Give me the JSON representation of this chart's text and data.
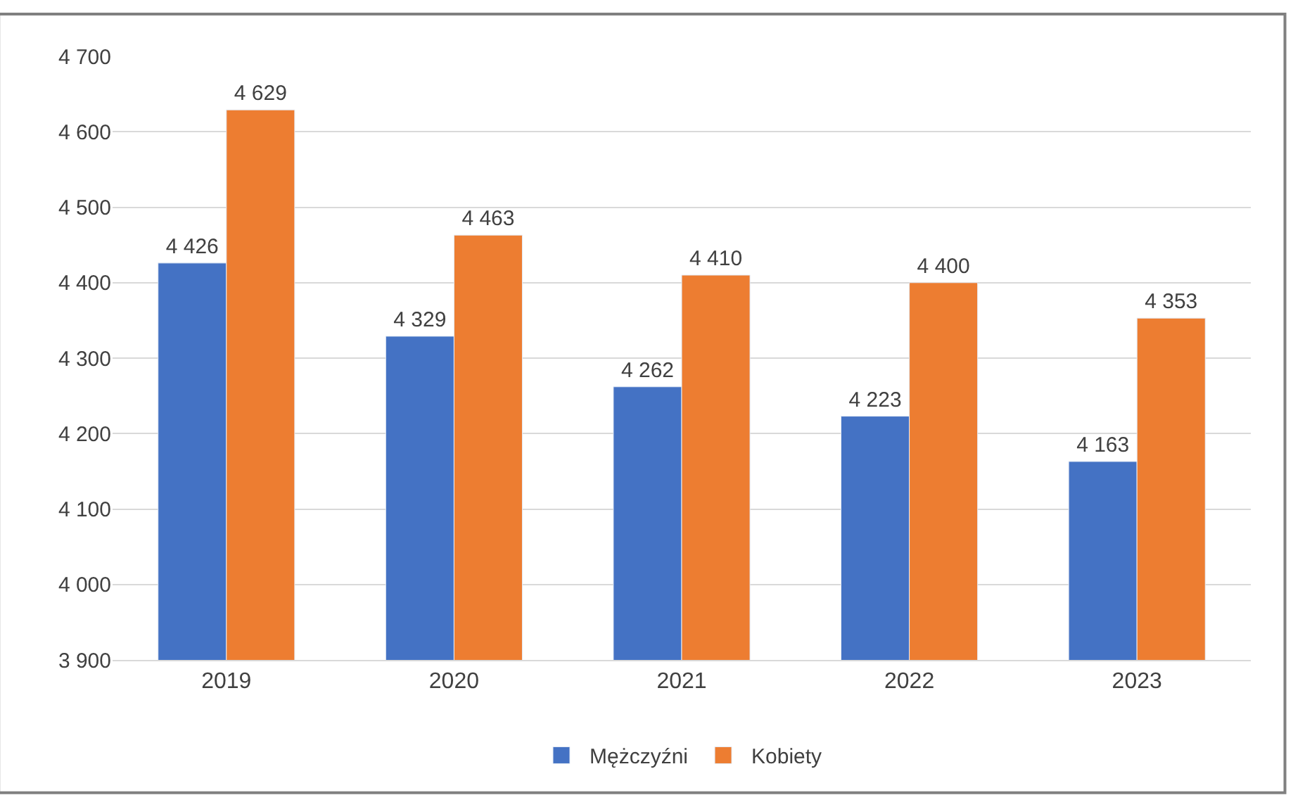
{
  "chart_data": {
    "type": "bar",
    "categories": [
      "2019",
      "2020",
      "2021",
      "2022",
      "2023"
    ],
    "series": [
      {
        "name": "Mężczyźni",
        "color": "#4472c4",
        "values": [
          4426,
          4329,
          4262,
          4223,
          4163
        ],
        "value_labels": [
          "4 426",
          "4 329",
          "4 262",
          "4 223",
          "4 163"
        ]
      },
      {
        "name": "Kobiety",
        "color": "#ed7d31",
        "values": [
          4629,
          4463,
          4410,
          4400,
          4353
        ],
        "value_labels": [
          "4 629",
          "4 463",
          "4 410",
          "4 400",
          "4 353"
        ]
      }
    ],
    "ylim": [
      3900,
      4700
    ],
    "yticks": [
      {
        "value": 3900,
        "label": "3 900"
      },
      {
        "value": 4000,
        "label": "4 000"
      },
      {
        "value": 4100,
        "label": "4 100"
      },
      {
        "value": 4200,
        "label": "4 200"
      },
      {
        "value": 4300,
        "label": "4 300"
      },
      {
        "value": 4400,
        "label": "4 400"
      },
      {
        "value": 4500,
        "label": "4 500"
      },
      {
        "value": 4600,
        "label": "4 600"
      },
      {
        "value": 4700,
        "label": "4 700"
      }
    ],
    "grid": "y",
    "legend": "bottom"
  }
}
